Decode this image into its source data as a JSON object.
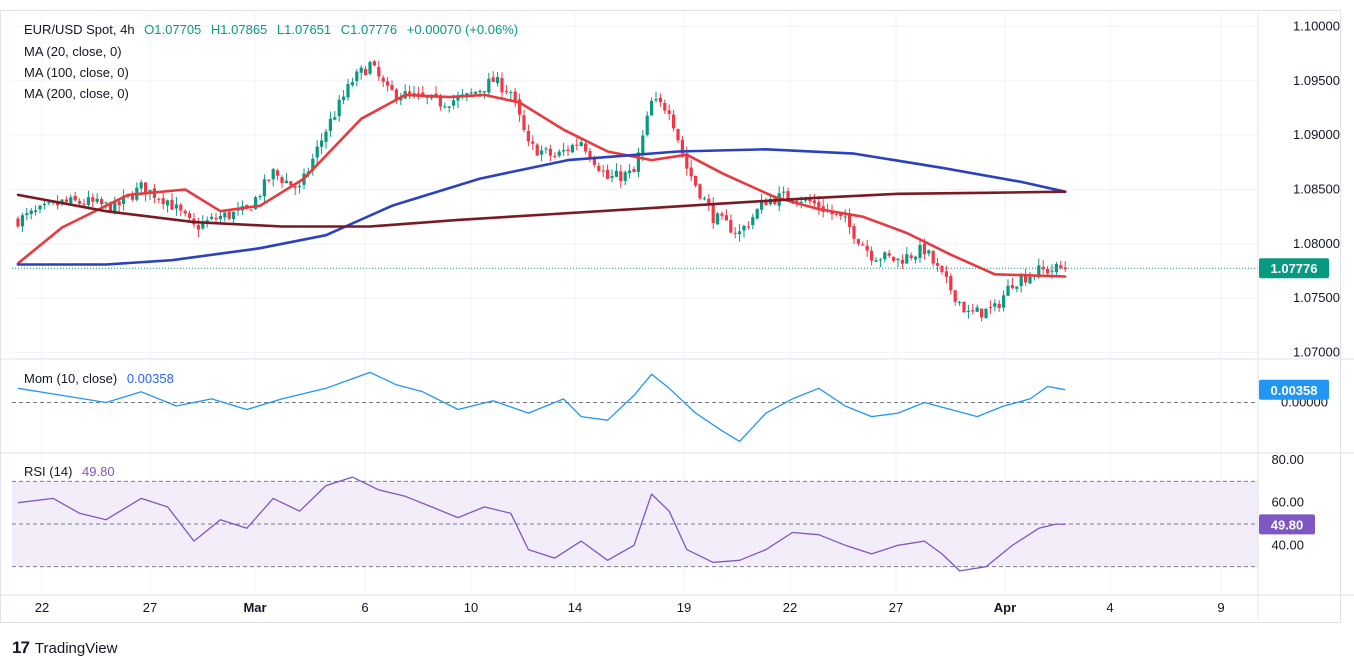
{
  "header": {
    "symbol": "EUR/USD Spot, 4h",
    "open": "O1.07705",
    "high": "H1.07865",
    "low": "L1.07651",
    "close": "C1.07776",
    "change": "+0.00070 (+0.06%)",
    "ma_lines": [
      "MA (20, close, 0)",
      "MA (100, close, 0)",
      "MA (200, close, 0)"
    ]
  },
  "momentum_legend": {
    "label": "Mom (10, close)",
    "value": "0.00358"
  },
  "rsi_legend": {
    "label": "RSI (14)",
    "value": "49.80"
  },
  "brand": {
    "logo_icon": "tradingview-logo-icon",
    "name": "TradingView"
  },
  "colors": {
    "up": "#089981",
    "down": "#f23645",
    "ma20": "#e8393f",
    "ma100": "#2a42c0",
    "ma200": "#7a1a22",
    "momentum": "#2196f3",
    "rsi": "#7e57c2",
    "rsi_band": "#ede7f6"
  },
  "chart_data": [
    {
      "type": "candlestick",
      "title": "EUR/USD Spot, 4h",
      "ylim": [
        1.0695,
        1.1005
      ],
      "y_ticks": [
        "1.10000",
        "1.09500",
        "1.09000",
        "1.08500",
        "1.08000",
        "1.07500",
        "1.07000"
      ],
      "x_ticks": [
        "22",
        "27",
        "Mar",
        "6",
        "10",
        "14",
        "19",
        "22",
        "27",
        "Apr",
        "4",
        "9"
      ],
      "last_price_label": "1.07776",
      "close_path_anchors": [
        [
          0,
          1.0822
        ],
        [
          5,
          1.083
        ],
        [
          10,
          1.0838
        ],
        [
          16,
          1.0838
        ],
        [
          22,
          1.0833
        ],
        [
          28,
          1.0852
        ],
        [
          34,
          1.084
        ],
        [
          40,
          1.0815
        ],
        [
          46,
          1.0825
        ],
        [
          52,
          1.083
        ],
        [
          58,
          1.0865
        ],
        [
          64,
          1.085
        ],
        [
          70,
          1.0905
        ],
        [
          76,
          1.095
        ],
        [
          80,
          1.0965
        ],
        [
          84,
          1.094
        ],
        [
          90,
          1.0935
        ],
        [
          96,
          1.093
        ],
        [
          102,
          1.0935
        ],
        [
          108,
          1.095
        ],
        [
          112,
          1.094
        ],
        [
          116,
          1.089
        ],
        [
          122,
          1.088
        ],
        [
          128,
          1.0895
        ],
        [
          134,
          1.086
        ],
        [
          140,
          1.0865
        ],
        [
          144,
          1.093
        ],
        [
          148,
          1.0925
        ],
        [
          152,
          1.087
        ],
        [
          158,
          1.0825
        ],
        [
          164,
          1.081
        ],
        [
          170,
          1.084
        ],
        [
          176,
          1.0845
        ],
        [
          182,
          1.0835
        ],
        [
          188,
          1.082
        ],
        [
          194,
          1.079
        ],
        [
          200,
          1.0785
        ],
        [
          206,
          1.0795
        ],
        [
          210,
          1.077
        ],
        [
          216,
          1.0735
        ],
        [
          222,
          1.074
        ],
        [
          226,
          1.0765
        ],
        [
          232,
          1.0775
        ],
        [
          238,
          1.0778
        ]
      ],
      "series": [
        {
          "name": "MA (20, close, 0)",
          "points": [
            [
              0,
              1.0782
            ],
            [
              10,
              1.0815
            ],
            [
              25,
              1.0845
            ],
            [
              38,
              1.085
            ],
            [
              46,
              1.083
            ],
            [
              55,
              1.0835
            ],
            [
              65,
              1.086
            ],
            [
              78,
              1.0915
            ],
            [
              88,
              1.0937
            ],
            [
              98,
              1.0935
            ],
            [
              106,
              1.0937
            ],
            [
              114,
              1.093
            ],
            [
              124,
              1.0905
            ],
            [
              134,
              1.0885
            ],
            [
              144,
              1.0877
            ],
            [
              152,
              1.0882
            ],
            [
              160,
              1.0865
            ],
            [
              172,
              1.0843
            ],
            [
              182,
              1.0832
            ],
            [
              192,
              1.0825
            ],
            [
              202,
              1.081
            ],
            [
              212,
              1.079
            ],
            [
              222,
              1.0772
            ],
            [
              238,
              1.077
            ]
          ]
        },
        {
          "name": "MA (100, close, 0)",
          "points": [
            [
              0,
              1.0781
            ],
            [
              20,
              1.0781
            ],
            [
              35,
              1.0785
            ],
            [
              55,
              1.0796
            ],
            [
              70,
              1.0808
            ],
            [
              85,
              1.0835
            ],
            [
              105,
              1.086
            ],
            [
              125,
              1.0877
            ],
            [
              150,
              1.0885
            ],
            [
              170,
              1.0887
            ],
            [
              190,
              1.0883
            ],
            [
              210,
              1.087
            ],
            [
              228,
              1.0857
            ],
            [
              238,
              1.0848
            ]
          ]
        },
        {
          "name": "MA (200, close, 0)",
          "points": [
            [
              0,
              1.0845
            ],
            [
              20,
              1.083
            ],
            [
              40,
              1.082
            ],
            [
              60,
              1.0816
            ],
            [
              80,
              1.0816
            ],
            [
              100,
              1.0822
            ],
            [
              120,
              1.0827
            ],
            [
              140,
              1.0832
            ],
            [
              160,
              1.0837
            ],
            [
              180,
              1.0842
            ],
            [
              200,
              1.0846
            ],
            [
              220,
              1.0847
            ],
            [
              238,
              1.0848
            ]
          ]
        }
      ]
    },
    {
      "type": "line",
      "title": "Mom (10, close)",
      "ylim": [
        -0.014,
        0.012
      ],
      "y_ticks": [
        "0.00000"
      ],
      "last_value_label": "0.00358",
      "baseline": 0,
      "series": [
        {
          "name": "Mom (10, close)",
          "points": [
            [
              0,
              0.004
            ],
            [
              10,
              0.002
            ],
            [
              20,
              0.0
            ],
            [
              28,
              0.003
            ],
            [
              36,
              -0.001
            ],
            [
              44,
              0.001
            ],
            [
              52,
              -0.002
            ],
            [
              60,
              0.001
            ],
            [
              70,
              0.004
            ],
            [
              80,
              0.0085
            ],
            [
              86,
              0.005
            ],
            [
              92,
              0.003
            ],
            [
              100,
              -0.002
            ],
            [
              108,
              0.0005
            ],
            [
              116,
              -0.003
            ],
            [
              124,
              0.001
            ],
            [
              128,
              -0.004
            ],
            [
              134,
              -0.005
            ],
            [
              140,
              0.002
            ],
            [
              144,
              0.008
            ],
            [
              148,
              0.004
            ],
            [
              154,
              -0.003
            ],
            [
              160,
              -0.008
            ],
            [
              164,
              -0.011
            ],
            [
              170,
              -0.003
            ],
            [
              176,
              0.001
            ],
            [
              182,
              0.004
            ],
            [
              188,
              -0.001
            ],
            [
              194,
              -0.004
            ],
            [
              200,
              -0.003
            ],
            [
              206,
              0.0
            ],
            [
              212,
              -0.002
            ],
            [
              218,
              -0.004
            ],
            [
              224,
              -0.001
            ],
            [
              230,
              0.001
            ],
            [
              234,
              0.0045
            ],
            [
              238,
              0.0036
            ]
          ]
        }
      ]
    },
    {
      "type": "line",
      "title": "RSI (14)",
      "ylim": [
        20,
        80
      ],
      "y_ticks": [
        "80.00",
        "60.00",
        "40.00"
      ],
      "levels": [
        70,
        50,
        30
      ],
      "last_value_label": "49.80",
      "series": [
        {
          "name": "RSI (14)",
          "points": [
            [
              0,
              60
            ],
            [
              8,
              62
            ],
            [
              14,
              55
            ],
            [
              20,
              52
            ],
            [
              28,
              62
            ],
            [
              34,
              58
            ],
            [
              40,
              42
            ],
            [
              46,
              52
            ],
            [
              52,
              48
            ],
            [
              58,
              62
            ],
            [
              64,
              56
            ],
            [
              70,
              68
            ],
            [
              76,
              72
            ],
            [
              82,
              66
            ],
            [
              88,
              63
            ],
            [
              94,
              58
            ],
            [
              100,
              53
            ],
            [
              106,
              58
            ],
            [
              112,
              55
            ],
            [
              116,
              38
            ],
            [
              122,
              34
            ],
            [
              128,
              42
            ],
            [
              134,
              33
            ],
            [
              140,
              40
            ],
            [
              144,
              64
            ],
            [
              148,
              56
            ],
            [
              152,
              38
            ],
            [
              158,
              32
            ],
            [
              164,
              33
            ],
            [
              170,
              38
            ],
            [
              176,
              46
            ],
            [
              182,
              45
            ],
            [
              188,
              40
            ],
            [
              194,
              36
            ],
            [
              200,
              40
            ],
            [
              206,
              42
            ],
            [
              210,
              36
            ],
            [
              214,
              28
            ],
            [
              220,
              30
            ],
            [
              226,
              40
            ],
            [
              232,
              48
            ],
            [
              236,
              50
            ],
            [
              238,
              49.8
            ]
          ]
        }
      ]
    }
  ]
}
